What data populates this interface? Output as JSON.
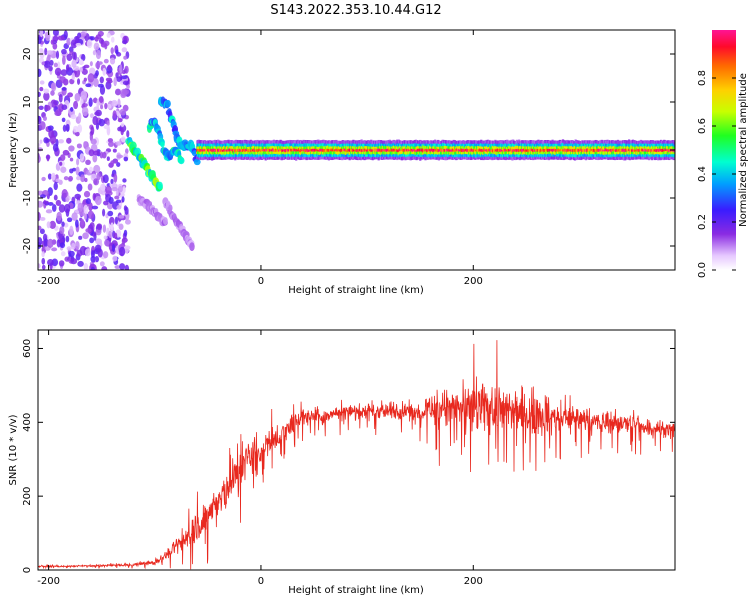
{
  "title": "S143.2022.353.10.44.G12",
  "chart_data": [
    {
      "type": "heatmap",
      "xlabel": "Height of straight line (km)",
      "ylabel": "Frequency (Hz)",
      "xlim": [
        -210,
        390
      ],
      "ylim": [
        -25,
        25
      ],
      "xticks": [
        -200,
        0,
        200
      ],
      "xtick_labels": [
        "-200",
        "0",
        "200"
      ],
      "yticks": [
        -20,
        -10,
        0,
        10,
        20
      ],
      "ytick_labels": [
        "-20",
        "-10",
        "0",
        "10",
        "20"
      ],
      "colorbar": {
        "label": "Normalized spectral amplitude",
        "range": [
          0,
          1
        ],
        "ticks": [
          0,
          0.2,
          0.4,
          0.6,
          0.8
        ],
        "tick_labels": [
          "0.0",
          "0.2",
          "0.4",
          "0.6",
          "0.8"
        ],
        "colormap": "rainbow (white → violet → blue → cyan → green → yellow → red → magenta)"
      },
      "features": [
        {
          "x_range": [
            -210,
            -125
          ],
          "y_range": [
            -25,
            25
          ],
          "amplitude": 0.15,
          "kind": "scattered noise"
        },
        {
          "x_range": [
            -125,
            -95
          ],
          "y_from": 2,
          "y_to": -8,
          "amplitude": 0.5,
          "kind": "descending streak"
        },
        {
          "x_range": [
            -105,
            -75
          ],
          "y_from": 5,
          "y_to": -3,
          "amplitude": 0.4,
          "kind": "oscillating streak"
        },
        {
          "x_range": [
            -95,
            -60
          ],
          "y_from": 10,
          "y_to": -3,
          "amplitude": 0.35,
          "kind": "oscillating streak"
        },
        {
          "x_range": [
            -115,
            -90
          ],
          "y_from": -10,
          "y_to": -15,
          "amplitude": 0.1,
          "kind": "faint tail"
        },
        {
          "x_range": [
            -90,
            -65
          ],
          "y_from": -11,
          "y_to": -20,
          "amplitude": 0.1,
          "kind": "faint tail"
        },
        {
          "x_range": [
            -60,
            390
          ],
          "y_center": 0,
          "half_width": 1,
          "amplitude": 0.95,
          "kind": "carrier line"
        }
      ]
    },
    {
      "type": "line",
      "xlabel": "Height of straight line (km)",
      "ylabel": "SNR (10 * v/v)",
      "xlim": [
        -210,
        390
      ],
      "ylim": [
        0,
        650
      ],
      "xticks": [
        -200,
        0,
        200
      ],
      "xtick_labels": [
        "-200",
        "0",
        "200"
      ],
      "yticks": [
        0,
        200,
        400,
        600
      ],
      "ytick_labels": [
        "0",
        "200",
        "400",
        "600"
      ],
      "series": [
        {
          "color": "#e8281e",
          "x": [
            -210,
            -180,
            -150,
            -120,
            -100,
            -90,
            -80,
            -70,
            -60,
            -50,
            -40,
            -30,
            -20,
            -10,
            0,
            10,
            20,
            30,
            40,
            60,
            80,
            100,
            120,
            140,
            160,
            180,
            200,
            220,
            240,
            260,
            280,
            300,
            320,
            340,
            360,
            380,
            390
          ],
          "y": [
            10,
            10,
            12,
            14,
            20,
            40,
            60,
            90,
            120,
            150,
            180,
            230,
            270,
            310,
            330,
            350,
            370,
            400,
            420,
            420,
            430,
            430,
            430,
            430,
            440,
            440,
            440,
            440,
            430,
            420,
            410,
            410,
            400,
            400,
            390,
            380,
            380
          ],
          "noise": [
            3,
            3,
            4,
            6,
            10,
            20,
            30,
            60,
            70,
            80,
            80,
            90,
            100,
            90,
            70,
            60,
            50,
            40,
            35,
            30,
            30,
            30,
            35,
            40,
            60,
            80,
            100,
            110,
            100,
            90,
            70,
            60,
            50,
            45,
            40,
            35,
            35
          ]
        }
      ]
    }
  ]
}
